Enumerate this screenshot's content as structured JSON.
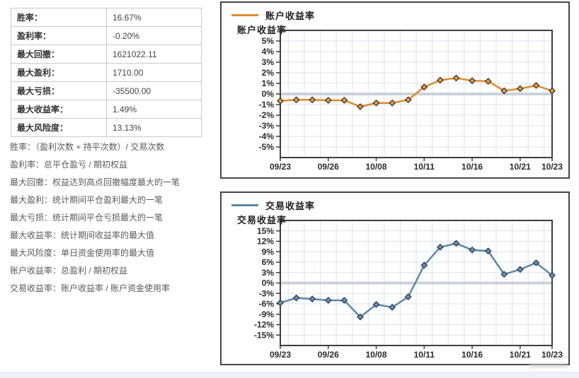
{
  "stats_table": {
    "rows": [
      {
        "label": "胜率：",
        "value": "16.67%"
      },
      {
        "label": "盈利率：",
        "value": "-0.20%"
      },
      {
        "label": "最大回撤：",
        "value": "1621022.11"
      },
      {
        "label": "最大盈利：",
        "value": "1710.00"
      },
      {
        "label": "最大亏损：",
        "value": "-35500.00"
      },
      {
        "label": "最大收益率：",
        "value": "1.49%"
      },
      {
        "label": "最大风险度：",
        "value": "13.13%"
      }
    ]
  },
  "notes": [
    "胜率：（盈利次数 + 持平次数）/ 交易次数",
    "盈利率：总平仓盈亏 / 期初权益",
    "最大回撤：权益达到高点回撤幅度最大的一笔",
    "最大盈利：统计期间平仓盈利最大的一笔",
    "最大亏损：统计期间平仓亏损最大的一笔",
    "最大收益率：统计期间收益率的最大值",
    "最大风险度：单日资金使用率的最大值",
    "账户收益率：总盈利 / 期初权益",
    "交易收益率：账户收益率 / 账户资金使用率"
  ],
  "chart_data": [
    {
      "type": "line",
      "name": "account-return-rate",
      "legend": "账户收益率",
      "title": "账户收益率",
      "line_color": "#DE8A2F",
      "marker": "diamond",
      "marker_fill": "#DFA055",
      "marker_stroke": "#42301A",
      "y_unit": "%",
      "ylim": [
        -6,
        6
      ],
      "yticks": [
        5,
        4,
        3,
        2,
        1,
        0,
        -1,
        -2,
        -3,
        -4,
        -5
      ],
      "x_tick_labels": [
        "09/23",
        "09/26",
        "10/08",
        "10/11",
        "10/16",
        "10/21",
        "10/23"
      ],
      "x_tick_indices": [
        0,
        3,
        6,
        9,
        12,
        15,
        17
      ],
      "values": [
        -0.65,
        -0.55,
        -0.55,
        -0.6,
        -0.6,
        -1.2,
        -0.85,
        -0.85,
        -0.55,
        0.65,
        1.3,
        1.5,
        1.25,
        1.2,
        0.3,
        0.5,
        0.8,
        0.3
      ],
      "grid": true,
      "legend_position": "top-left"
    },
    {
      "type": "line",
      "name": "trade-return-rate",
      "legend": "交易收益率",
      "title": "交易收益率",
      "line_color": "#5C88A5",
      "marker": "diamond",
      "marker_fill": "#6C93AD",
      "marker_stroke": "#263D52",
      "y_unit": "%",
      "ylim": [
        -18,
        18
      ],
      "yticks": [
        15,
        12,
        9,
        6,
        3,
        0,
        -3,
        -6,
        -9,
        -12,
        -15
      ],
      "x_tick_labels": [
        "09/23",
        "09/26",
        "10/08",
        "10/11",
        "10/16",
        "10/21",
        "10/23"
      ],
      "x_tick_indices": [
        0,
        3,
        6,
        9,
        12,
        15,
        17
      ],
      "values": [
        -5.7,
        -4.3,
        -4.6,
        -5.0,
        -5.0,
        -9.8,
        -6.2,
        -7.0,
        -4.0,
        5.1,
        10.3,
        11.4,
        9.5,
        9.2,
        2.5,
        3.9,
        5.8,
        2.2
      ],
      "grid": true,
      "legend_position": "top-left"
    }
  ],
  "colors": {
    "grid_line": "#DCE1E9",
    "zero_line": "#CCD1D8",
    "plot_frame": "#3D3D3D",
    "panel_border": "#454545",
    "footer_strip": "#EDF1F7"
  }
}
